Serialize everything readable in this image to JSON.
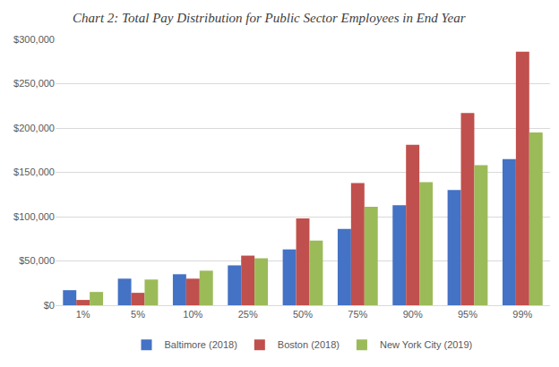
{
  "chart_data": {
    "type": "bar",
    "title": "Chart 2: Total Pay Distribution for Public Sector Employees in End Year",
    "categories": [
      "1%",
      "5%",
      "10%",
      "25%",
      "50%",
      "75%",
      "90%",
      "95%",
      "99%"
    ],
    "series": [
      {
        "name": "Baltimore (2018)",
        "color": "#4472C4",
        "values": [
          17000,
          30000,
          35000,
          45000,
          63000,
          86000,
          113000,
          130000,
          165000
        ]
      },
      {
        "name": "Boston (2018)",
        "color": "#C0504D",
        "values": [
          6000,
          14000,
          30000,
          56000,
          98000,
          138000,
          181000,
          217000,
          286000
        ]
      },
      {
        "name": "New York City (2019)",
        "color": "#9BBB59",
        "values": [
          15000,
          29000,
          39000,
          53000,
          73000,
          111000,
          139000,
          158000,
          195000
        ]
      }
    ],
    "ylim": [
      0,
      300000
    ],
    "yticks": [
      {
        "value": 0,
        "label": "$0"
      },
      {
        "value": 50000,
        "label": "$50,000"
      },
      {
        "value": 100000,
        "label": "$100,000"
      },
      {
        "value": 150000,
        "label": "$150,000"
      },
      {
        "value": 200000,
        "label": "$200,000"
      },
      {
        "value": 250000,
        "label": "$250,000"
      },
      {
        "value": 300000,
        "label": "$300,000"
      }
    ],
    "grid": true,
    "legend": "bottom"
  }
}
